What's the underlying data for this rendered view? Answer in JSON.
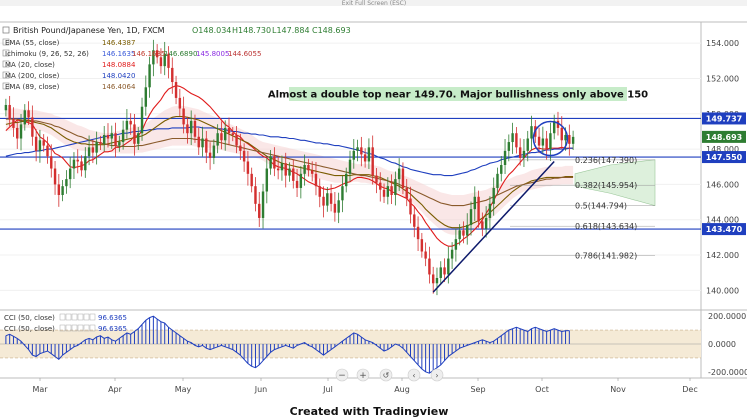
{
  "topbar": {
    "exit_label": "Exit Full Screen (ESC)"
  },
  "header": {
    "symbol": "British Pound/Japanese Yen, 1D, FXCM",
    "open": "O148.034",
    "high": "H148.730",
    "low": "L147.884",
    "close": "C148.693"
  },
  "indicators": [
    {
      "label": "EMA (55, close)",
      "value": "146.4387",
      "color": "#7a5c00"
    },
    {
      "label": "Ichimoku (9, 26, 52, 26)",
      "value": "146.1635",
      "color": "#3b5bd9"
    },
    {
      "label": "MA (20, close)",
      "value": "148.0884",
      "color": "#e01b1b"
    },
    {
      "label": "MA (200, close)",
      "value": "148.0420",
      "color": "#1f3fbf"
    },
    {
      "label": "EMA (89, close)",
      "value": "146.4064",
      "color": "#8a5a2b"
    }
  ],
  "ichimoku_extra_values": [
    "0.2060",
    "146.1635",
    "146.6890",
    "145.8005",
    "144.6055"
  ],
  "annotation": "Almost a double top near 149.70. Major bullishness only above 150",
  "price_tags": [
    {
      "value": "149.737",
      "price": 149.737,
      "bg": "#1f3fbf"
    },
    {
      "value": "148.693",
      "price": 148.693,
      "bg": "#2e7d32"
    },
    {
      "value": "147.550",
      "price": 147.55,
      "bg": "#1f3fbf"
    },
    {
      "value": "143.470",
      "price": 143.47,
      "bg": "#1f3fbf"
    }
  ],
  "fib_labels": [
    {
      "text": "0.236(147.390)",
      "price": 147.39
    },
    {
      "text": "0.382(145.954)",
      "price": 145.954
    },
    {
      "text": "0.5(144.794)",
      "price": 144.794
    },
    {
      "text": "0.618(143.634)",
      "price": 143.634
    },
    {
      "text": "0.786(141.982)",
      "price": 141.982
    }
  ],
  "cci_legend": [
    {
      "label": "CCI (50, close)",
      "value": "96.6365"
    },
    {
      "label": "CCI (50, close)",
      "value": "96.6365"
    }
  ],
  "footer": "Created with  Tradingview",
  "colors": {
    "up": "#2e7d32",
    "down": "#d32f2f",
    "hline": "#1f3fbf",
    "cci": "#1f3fbf",
    "cci_band": "#f5ead6"
  },
  "chart_data": {
    "type": "candlestick",
    "title": "British Pound/Japanese Yen, 1D, FXCM",
    "y_axis": {
      "ylim": [
        139,
        155.2
      ],
      "ticks": [
        154.0,
        152.0,
        150.0,
        148.0,
        146.0,
        144.0,
        142.0,
        140.0
      ]
    },
    "x_axis": {
      "labels": [
        "Mar",
        "Apr",
        "May",
        "Jun",
        "Jul",
        "Aug",
        "Sep",
        "Oct",
        "Nov",
        "Dec"
      ]
    },
    "closes": [
      150.5,
      149.7,
      149.2,
      148.6,
      149.4,
      150.2,
      149.8,
      148.7,
      147.9,
      148.5,
      148.2,
      147.6,
      146.9,
      146.0,
      145.4,
      145.9,
      146.3,
      146.9,
      147.4,
      147.3,
      146.8,
      147.6,
      148.1,
      147.8,
      148.4,
      148.3,
      148.8,
      148.6,
      148.9,
      148.2,
      148.4,
      149.1,
      149.6,
      149.4,
      148.3,
      148.9,
      150.4,
      151.5,
      152.8,
      153.6,
      153.2,
      152.7,
      153.4,
      152.6,
      151.8,
      150.9,
      150.3,
      149.4,
      148.9,
      149.6,
      148.7,
      148.1,
      148.6,
      147.8,
      147.5,
      148.2,
      148.9,
      148.5,
      149.2,
      148.9,
      148.8,
      148.2,
      147.9,
      147.3,
      146.6,
      145.9,
      144.9,
      144.1,
      145.6,
      146.9,
      147.6,
      146.9,
      146.8,
      147.2,
      146.5,
      146.9,
      146.2,
      145.8,
      146.6,
      147.1,
      146.8,
      146.6,
      145.9,
      145.3,
      144.8,
      145.5,
      144.9,
      144.4,
      145.1,
      145.9,
      146.6,
      147.4,
      147.9,
      148.1,
      147.7,
      147.3,
      148.1,
      146.5,
      146.1,
      145.7,
      145.3,
      145.9,
      145.4,
      146.3,
      146.9,
      145.8,
      145.2,
      144.3,
      143.6,
      142.9,
      142.2,
      141.8,
      140.9,
      140.4,
      140.7,
      141.3,
      140.9,
      141.8,
      142.3,
      142.9,
      143.4,
      143.1,
      143.7,
      144.6,
      145.3,
      143.9,
      143.5,
      144.1,
      144.9,
      145.8,
      146.6,
      147.1,
      147.9,
      148.4,
      148.9,
      148.1,
      147.5,
      147.9,
      148.6,
      149.3,
      148.7,
      148.2,
      148.6,
      148.0,
      148.9,
      149.6,
      149.2,
      148.5,
      148.8,
      148.3,
      148.693
    ],
    "lines": {
      "MA20": [
        149.05,
        149.25,
        149.45,
        149.65,
        149.6,
        149.55,
        149.5,
        149.4,
        149.05,
        148.7,
        148.55,
        148.35,
        148.05,
        147.75,
        147.65,
        147.5,
        147.25,
        147.0,
        146.95,
        147.0,
        147.05,
        147.15,
        147.35,
        147.4,
        147.55,
        147.7,
        147.85,
        147.85,
        147.9,
        148.1,
        148.1,
        148.2,
        148.35,
        148.5,
        148.75,
        148.75,
        149.05,
        149.55,
        149.95,
        150.3,
        150.55,
        150.8,
        151.15,
        151.4,
        151.5,
        151.6,
        151.55,
        151.45,
        151.3,
        151.15,
        151.05,
        150.95,
        150.8,
        150.6,
        150.4,
        150.15,
        149.9,
        149.65,
        149.4,
        149.25,
        149.0,
        148.8,
        148.7,
        148.45,
        148.3,
        148.15,
        147.95,
        147.75,
        147.6,
        147.5,
        147.3,
        147.1,
        147.0,
        146.95,
        146.9,
        146.8,
        146.7,
        146.6,
        146.45,
        146.3,
        146.15,
        146.05,
        145.95,
        145.85,
        145.75,
        145.7,
        145.75,
        145.8,
        145.9,
        146.0,
        146.1,
        146.15,
        146.3,
        146.4,
        146.4,
        146.35,
        146.3,
        146.2,
        146.05,
        145.9,
        145.8,
        145.75,
        145.6,
        145.5,
        145.4,
        145.3,
        145.2,
        144.95,
        144.75,
        144.45,
        144.2,
        143.85,
        143.55,
        143.25,
        142.95,
        142.75,
        142.6,
        142.5,
        142.5,
        142.6,
        142.7,
        142.9,
        143.05,
        143.25,
        143.45,
        143.7,
        144.0,
        144.35,
        144.7,
        145.1,
        145.5,
        145.9,
        146.25,
        146.55,
        146.75,
        147.0,
        147.25,
        147.5,
        147.75,
        147.95,
        148.05,
        148.05,
        148.0,
        148.0,
        148.05,
        148.05,
        148.05,
        148.1,
        148.05,
        148.05,
        148.05
      ],
      "MA200": [
        147.6,
        147.65,
        147.7,
        147.75,
        147.75,
        147.8,
        147.8,
        147.85,
        147.9,
        147.9,
        147.95,
        148.0,
        148.0,
        148.05,
        148.1,
        148.15,
        148.2,
        148.25,
        148.3,
        148.35,
        148.4,
        148.45,
        148.5,
        148.55,
        148.6,
        148.65,
        148.7,
        148.75,
        148.8,
        148.8,
        148.85,
        148.9,
        148.9,
        148.95,
        149.0,
        149.0,
        149.05,
        149.05,
        149.1,
        149.1,
        149.15,
        149.15,
        149.15,
        149.15,
        149.2,
        149.2,
        149.2,
        149.2,
        149.2,
        149.25,
        149.25,
        149.25,
        149.2,
        149.2,
        149.2,
        149.2,
        149.15,
        149.15,
        149.1,
        149.05,
        149.0,
        149.0,
        148.95,
        148.9,
        148.9,
        148.85,
        148.85,
        148.8,
        148.8,
        148.75,
        148.7,
        148.7,
        148.7,
        148.65,
        148.65,
        148.6,
        148.6,
        148.55,
        148.5,
        148.5,
        148.45,
        148.4,
        148.35,
        148.35,
        148.3,
        148.3,
        148.25,
        148.2,
        148.2,
        148.15,
        148.1,
        148.05,
        148.0,
        147.95,
        147.9,
        147.8,
        147.75,
        147.7,
        147.6,
        147.5,
        147.45,
        147.35,
        147.25,
        147.2,
        147.1,
        147.0,
        146.95,
        146.85,
        146.8,
        146.75,
        146.7,
        146.65,
        146.6,
        146.55,
        146.55,
        146.55,
        146.5,
        146.5,
        146.5,
        146.55,
        146.6,
        146.65,
        146.7,
        146.8,
        146.85,
        146.95,
        147.05,
        147.1,
        147.2,
        147.25,
        147.3,
        147.4,
        147.45,
        147.5,
        147.55,
        147.6,
        147.65,
        147.7,
        147.75,
        147.8,
        147.8,
        147.85,
        147.9,
        147.95,
        147.95,
        148.0,
        148.0,
        148.0,
        148.0,
        148.05,
        148.05
      ],
      "EMA55": [
        149.4,
        149.45,
        149.5,
        149.5,
        149.55,
        149.6,
        149.6,
        149.55,
        149.5,
        149.45,
        149.4,
        149.3,
        149.2,
        149.05,
        148.9,
        148.75,
        148.6,
        148.5,
        148.4,
        148.35,
        148.3,
        148.3,
        148.25,
        148.25,
        148.25,
        148.25,
        148.25,
        148.3,
        148.35,
        148.4,
        148.45,
        148.5,
        148.55,
        148.6,
        148.65,
        148.7,
        148.75,
        148.85,
        149.0,
        149.15,
        149.3,
        149.45,
        149.6,
        149.7,
        149.8,
        149.85,
        149.85,
        149.85,
        149.8,
        149.75,
        149.7,
        149.65,
        149.55,
        149.45,
        149.35,
        149.25,
        149.15,
        149.05,
        148.95,
        148.85,
        148.75,
        148.65,
        148.55,
        148.45,
        148.35,
        148.2,
        148.05,
        147.9,
        147.75,
        147.6,
        147.5,
        147.4,
        147.3,
        147.2,
        147.15,
        147.1,
        147.05,
        147.0,
        146.95,
        146.9,
        146.85,
        146.8,
        146.75,
        146.7,
        146.65,
        146.6,
        146.55,
        146.5,
        146.5,
        146.5,
        146.5,
        146.5,
        146.55,
        146.55,
        146.55,
        146.55,
        146.55,
        146.5,
        146.45,
        146.4,
        146.3,
        146.2,
        146.1,
        146.0,
        145.9,
        145.75,
        145.6,
        145.45,
        145.25,
        145.05,
        144.85,
        144.6,
        144.4,
        144.2,
        144.0,
        143.85,
        143.7,
        143.6,
        143.55,
        143.55,
        143.55,
        143.6,
        143.65,
        143.75,
        143.85,
        143.95,
        144.1,
        144.25,
        144.4,
        144.6,
        144.8,
        145.0,
        145.2,
        145.4,
        145.6,
        145.75,
        145.9,
        146.0,
        146.1,
        146.2,
        146.25,
        146.3,
        146.35,
        146.4,
        146.4,
        146.4,
        146.4,
        146.4,
        146.45,
        146.45,
        146.45
      ],
      "EMA89": [
        149.7,
        149.7,
        149.7,
        149.7,
        149.65,
        149.65,
        149.65,
        149.6,
        149.6,
        149.55,
        149.5,
        149.45,
        149.4,
        149.3,
        149.25,
        149.15,
        149.05,
        148.95,
        148.85,
        148.75,
        148.7,
        148.6,
        148.5,
        148.45,
        148.4,
        148.35,
        148.3,
        148.25,
        148.2,
        148.2,
        148.15,
        148.15,
        148.15,
        148.15,
        148.15,
        148.2,
        148.2,
        148.25,
        148.3,
        148.35,
        148.4,
        148.45,
        148.5,
        148.55,
        148.6,
        148.6,
        148.6,
        148.6,
        148.6,
        148.6,
        148.55,
        148.55,
        148.5,
        148.5,
        148.45,
        148.45,
        148.4,
        148.35,
        148.3,
        148.25,
        148.2,
        148.15,
        148.1,
        148.05,
        148.0,
        147.95,
        147.9,
        147.85,
        147.8,
        147.75,
        147.7,
        147.65,
        147.6,
        147.55,
        147.5,
        147.45,
        147.4,
        147.35,
        147.3,
        147.25,
        147.2,
        147.15,
        147.1,
        147.05,
        147.0,
        146.95,
        146.9,
        146.85,
        146.8,
        146.75,
        146.7,
        146.65,
        146.6,
        146.55,
        146.5,
        146.5,
        146.45,
        146.4,
        146.35,
        146.3,
        146.25,
        146.2,
        146.15,
        146.1,
        146.0,
        145.9,
        145.85,
        145.75,
        145.65,
        145.55,
        145.45,
        145.35,
        145.25,
        145.15,
        145.05,
        144.95,
        144.9,
        144.85,
        144.8,
        144.8,
        144.8,
        144.8,
        144.85,
        144.9,
        144.95,
        145.0,
        145.05,
        145.1,
        145.2,
        145.3,
        145.4,
        145.5,
        145.6,
        145.7,
        145.8,
        145.9,
        145.95,
        146.0,
        146.05,
        146.1,
        146.15,
        146.2,
        146.25,
        146.3,
        146.3,
        146.35,
        146.35,
        146.4,
        146.4,
        146.4,
        146.4
      ]
    },
    "cci": [
      60,
      70,
      55,
      40,
      20,
      -10,
      -40,
      -80,
      -90,
      -70,
      -60,
      -50,
      -70,
      -90,
      -110,
      -80,
      -60,
      -40,
      -20,
      -10,
      10,
      30,
      40,
      30,
      50,
      60,
      40,
      50,
      30,
      20,
      40,
      60,
      80,
      70,
      90,
      110,
      140,
      170,
      190,
      200,
      180,
      160,
      150,
      120,
      100,
      80,
      60,
      40,
      20,
      10,
      -10,
      -20,
      -10,
      -30,
      -40,
      -30,
      -20,
      -10,
      -20,
      -30,
      -40,
      -60,
      -80,
      -110,
      -140,
      -160,
      -170,
      -150,
      -120,
      -90,
      -60,
      -40,
      -30,
      -20,
      -10,
      -20,
      -30,
      -10,
      0,
      10,
      -10,
      -20,
      -40,
      -60,
      -80,
      -60,
      -40,
      -20,
      0,
      20,
      40,
      60,
      80,
      70,
      50,
      30,
      20,
      10,
      -10,
      -30,
      -50,
      -40,
      -20,
      0,
      -10,
      -30,
      -60,
      -90,
      -120,
      -150,
      -180,
      -200,
      -210,
      -190,
      -170,
      -150,
      -120,
      -90,
      -70,
      -50,
      -30,
      -20,
      -10,
      0,
      10,
      20,
      30,
      20,
      10,
      20,
      40,
      60,
      80,
      100,
      110,
      120,
      110,
      100,
      90,
      110,
      120,
      110,
      100,
      90,
      100,
      110,
      100,
      90,
      95,
      96.6
    ],
    "cci_y_axis": {
      "ylim": [
        -230,
        230
      ],
      "ticks": [
        200.0,
        0.0,
        -200.0
      ],
      "band": [
        -100,
        100
      ]
    }
  }
}
